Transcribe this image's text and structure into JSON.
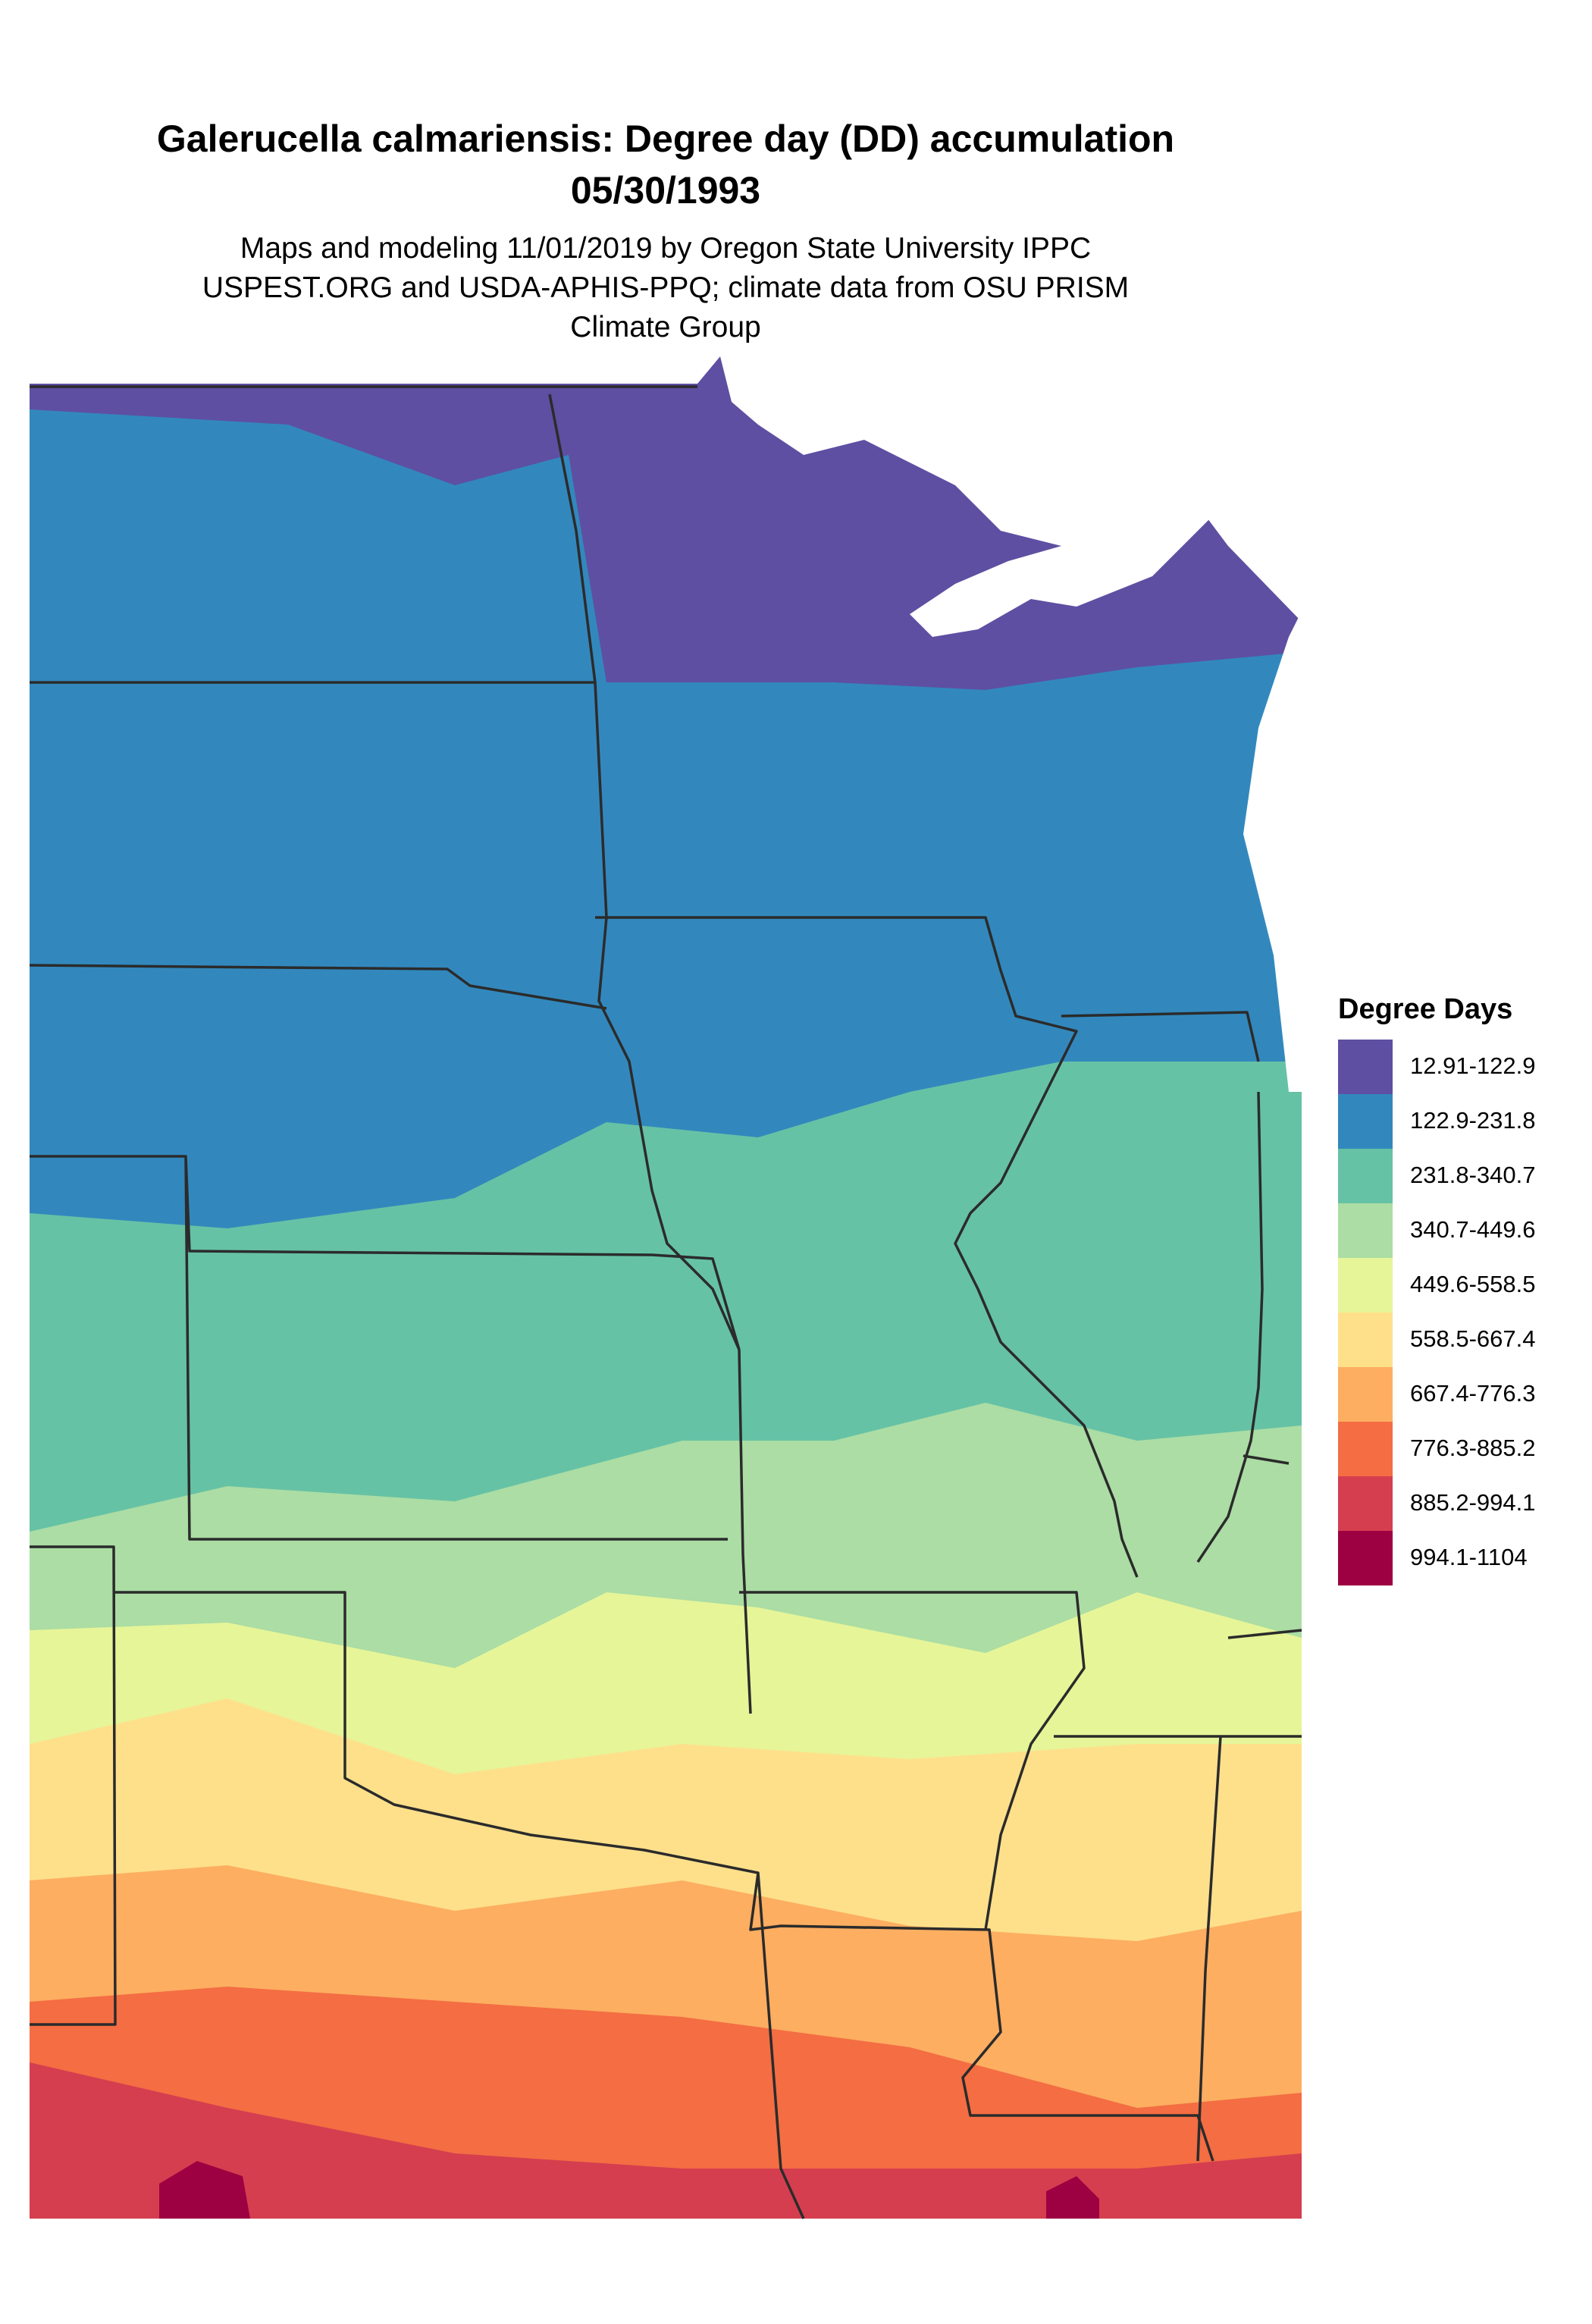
{
  "header": {
    "title": "Galerucella calmariensis: Degree day (DD) accumulation",
    "date": "05/30/1993",
    "subtitle_lines": [
      "Maps and modeling 11/01/2019 by Oregon State University IPPC",
      "USPEST.ORG and USDA-APHIS-PPQ; climate data from OSU PRISM",
      "Climate Group"
    ]
  },
  "legend": {
    "title": "Degree Days",
    "items": [
      {
        "label": "12.91-122.9",
        "color": "#5e4fa2"
      },
      {
        "label": "122.9-231.8",
        "color": "#3288bd"
      },
      {
        "label": "231.8-340.7",
        "color": "#66c2a5"
      },
      {
        "label": "340.7-449.6",
        "color": "#abdda4"
      },
      {
        "label": "449.6-558.5",
        "color": "#e6f598"
      },
      {
        "label": "558.5-667.4",
        "color": "#fee08b"
      },
      {
        "label": "667.4-776.3",
        "color": "#fdae61"
      },
      {
        "label": "776.3-885.2",
        "color": "#f46d43"
      },
      {
        "label": "885.2-994.1",
        "color": "#d53e4f"
      },
      {
        "label": "994.1-1104",
        "color": "#9e0142"
      }
    ]
  }
}
